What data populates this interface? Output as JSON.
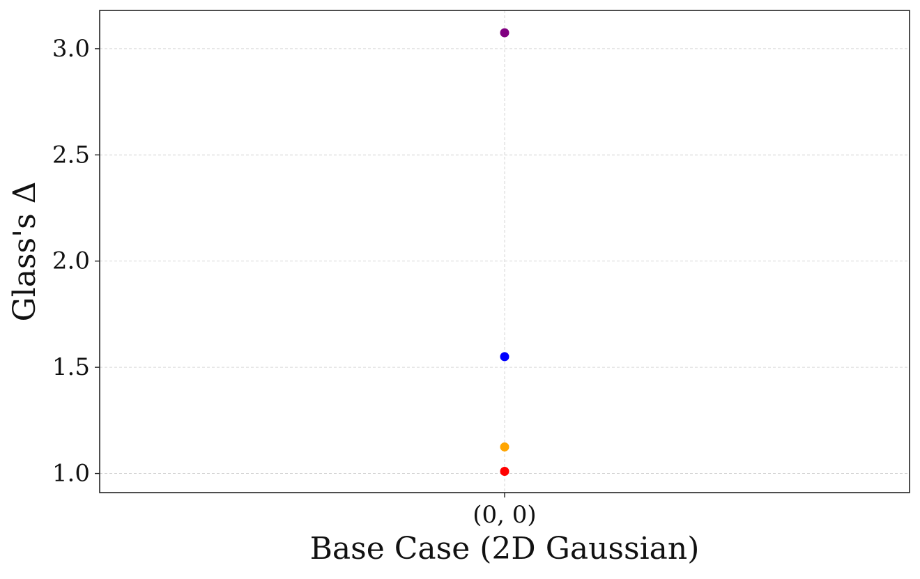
{
  "chart_data": {
    "type": "scatter",
    "title": "",
    "xlabel": "Base Case (2D Gaussian)",
    "ylabel": "Glass's Δ",
    "categories": [
      "(0, 0)"
    ],
    "ylim": [
      0.91,
      3.18
    ],
    "yticks": [
      1.0,
      1.5,
      2.0,
      2.5,
      3.0
    ],
    "ytick_labels": [
      "1.0",
      "1.5",
      "2.0",
      "2.5",
      "3.0"
    ],
    "grid": true,
    "points": [
      {
        "x": "(0, 0)",
        "y": 3.075,
        "color": "#800080"
      },
      {
        "x": "(0, 0)",
        "y": 1.55,
        "color": "#0000ff"
      },
      {
        "x": "(0, 0)",
        "y": 1.125,
        "color": "#ffa500"
      },
      {
        "x": "(0, 0)",
        "y": 1.01,
        "color": "#ff0000"
      }
    ]
  }
}
